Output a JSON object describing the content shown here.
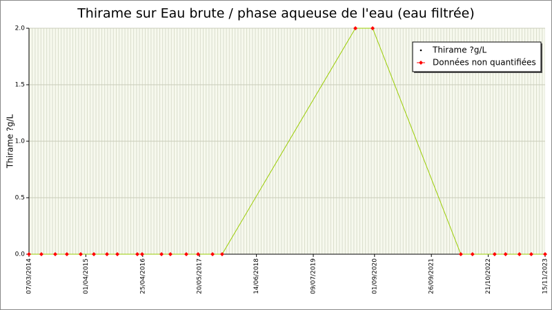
{
  "chart_data": {
    "type": "line",
    "title": "Thirame sur Eau brute / phase aqueuse de l'eau (eau filtrée)",
    "y_label": "Thirame ?g/L",
    "x": [
      "2014-03-07",
      "2014-05-31",
      "2014-09-03",
      "2014-11-22",
      "2015-02-25",
      "2015-05-26",
      "2015-08-24",
      "2015-11-03",
      "2016-03-19",
      "2016-04-21",
      "2016-09-01",
      "2016-11-01",
      "2017-02-18",
      "2017-05-10",
      "2017-08-17",
      "2017-10-22",
      "2020-04-23",
      "2020-08-19",
      "2022-04-16",
      "2022-07-05",
      "2022-12-04",
      "2023-02-17",
      "2023-05-23",
      "2023-08-12",
      "2023-11-15"
    ],
    "series": [
      {
        "name": "Thirame ?g/L",
        "color": "#99cc00",
        "marker_color": "#000000",
        "values": [
          0,
          0,
          0,
          0,
          0,
          0,
          0,
          0,
          0,
          0,
          0,
          0,
          0,
          0,
          0,
          0,
          2,
          2,
          0,
          0,
          0,
          0,
          0,
          0,
          0
        ]
      },
      {
        "name": "Données non quantifiées",
        "color": "#ff0000",
        "values": [
          0,
          0,
          0,
          0,
          0,
          0,
          0,
          0,
          0,
          0,
          0,
          0,
          0,
          0,
          0,
          0,
          2,
          2,
          0,
          0,
          0,
          0,
          0,
          0,
          0
        ]
      }
    ],
    "xlim": [
      "2014-03-07",
      "2023-11-15"
    ],
    "xticks": [
      {
        "value": "2014-03-07",
        "label": "07/03/2014"
      },
      {
        "value": "2015-04-01",
        "label": "01/04/2015"
      },
      {
        "value": "2016-04-25",
        "label": "25/04/2016"
      },
      {
        "value": "2017-05-20",
        "label": "20/05/2017"
      },
      {
        "value": "2018-06-14",
        "label": "14/06/2018"
      },
      {
        "value": "2019-07-09",
        "label": "09/07/2019"
      },
      {
        "value": "2020-09-01",
        "label": "01/09/2020"
      },
      {
        "value": "2021-09-26",
        "label": "26/09/2021"
      },
      {
        "value": "2022-10-21",
        "label": "21/10/2022"
      },
      {
        "value": "2023-11-15",
        "label": "15/11/2023"
      }
    ],
    "ylim": [
      0,
      2
    ],
    "yticks": [
      {
        "value": 0,
        "label": "0.0"
      },
      {
        "value": 0.5,
        "label": "0.5"
      },
      {
        "value": 1,
        "label": "1.0"
      },
      {
        "value": 1.5,
        "label": "1.5"
      },
      {
        "value": 2,
        "label": "2.0"
      }
    ],
    "grid": true,
    "legend": "top-right"
  }
}
